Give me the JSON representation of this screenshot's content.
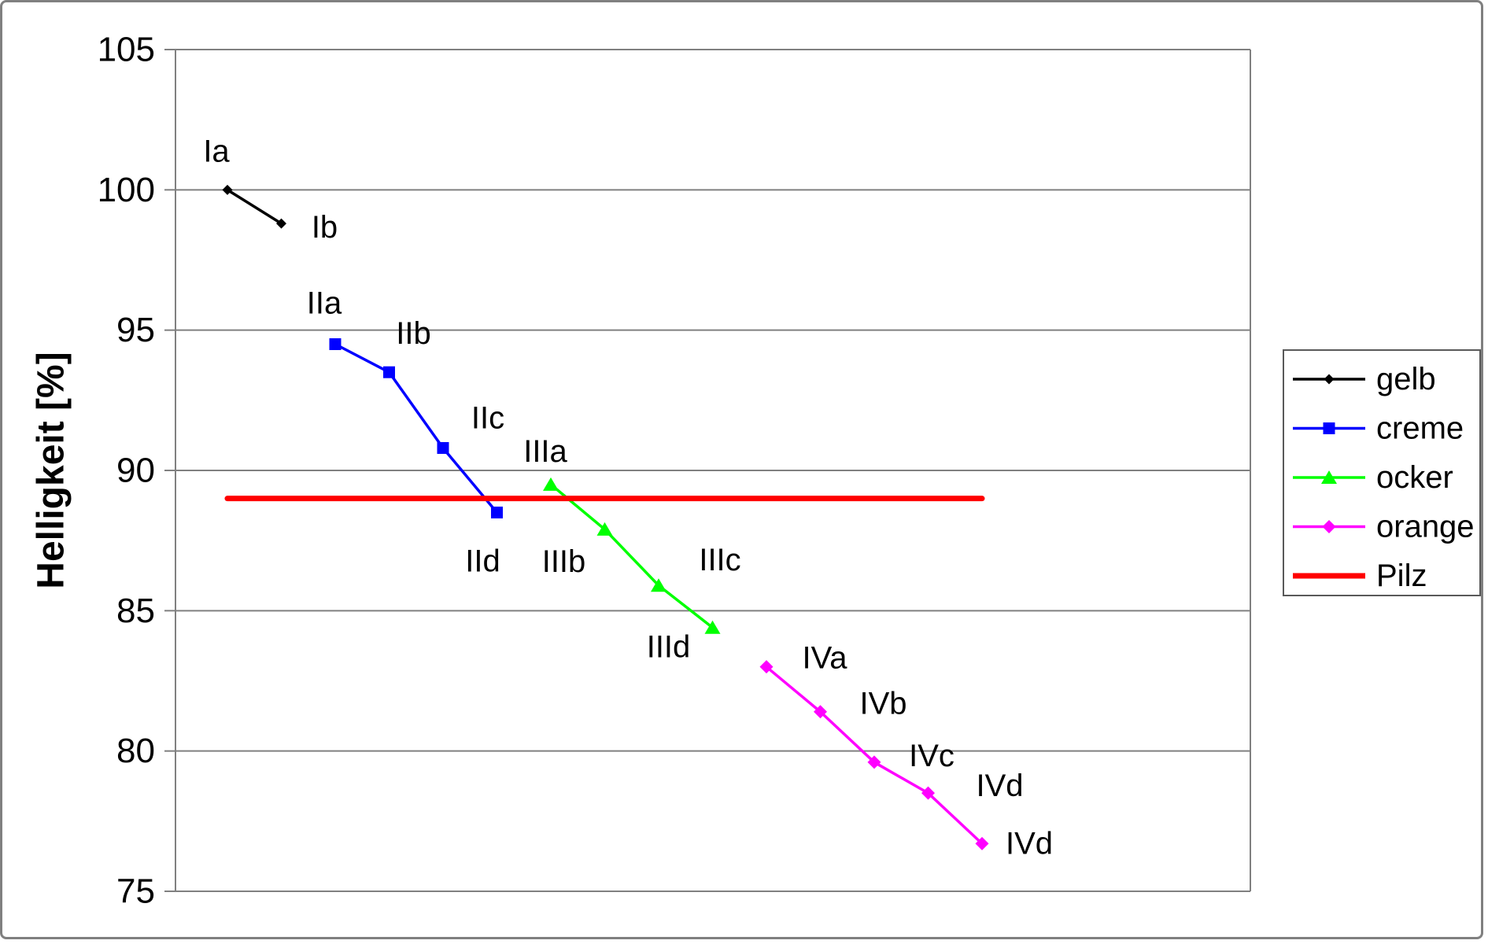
{
  "frame": {
    "background": "#ffffff",
    "border_color": "#808080"
  },
  "chart_data": {
    "type": "line",
    "title": "",
    "xlabel": "",
    "ylabel": "Helligkeit [%]",
    "ylim": [
      75,
      105
    ],
    "yticks": [
      105,
      100,
      95,
      90,
      85,
      80,
      75
    ],
    "ytick_labels": [
      "105",
      "100",
      "95",
      "90",
      "85",
      "80",
      "75"
    ],
    "grid": "horizontal",
    "gridline_color": "#808080",
    "axis_color": "#808080",
    "categories": [
      "Ia",
      "Ib",
      "IIa",
      "IIb",
      "IIc",
      "IId",
      "IIIa",
      "IIIb",
      "IIIc",
      "IIId",
      "IVa",
      "IVb",
      "IVc",
      "IVd",
      "IVd"
    ],
    "series": [
      {
        "name": "gelb",
        "color": "#000000",
        "marker": "diamond",
        "marker_size": 13,
        "line_width": 3.5,
        "points": [
          {
            "category": "Ia",
            "i": 0,
            "value": 100.0,
            "label": "Ia",
            "label_dx": -14,
            "label_dy": -49
          },
          {
            "category": "Ib",
            "i": 1,
            "value": 98.8,
            "label": "Ib",
            "label_dx": 55,
            "label_dy": 5
          }
        ]
      },
      {
        "name": "creme",
        "color": "#0000ff",
        "marker": "square",
        "marker_size": 15,
        "line_width": 3.5,
        "points": [
          {
            "category": "IIa",
            "i": 2,
            "value": 94.5,
            "label": "IIa",
            "label_dx": -14,
            "label_dy": -52
          },
          {
            "category": "IIb",
            "i": 3,
            "value": 93.5,
            "label": "IIb",
            "label_dx": 31,
            "label_dy": -49
          },
          {
            "category": "IIc",
            "i": 4,
            "value": 90.8,
            "label": "IIc",
            "label_dx": 57,
            "label_dy": -38
          },
          {
            "category": "IId",
            "i": 5,
            "value": 88.5,
            "label": "IId",
            "label_dx": -18,
            "label_dy": 62
          }
        ]
      },
      {
        "name": "ocker",
        "color": "#00ff00",
        "marker": "triangle",
        "marker_size": 20,
        "line_width": 3.5,
        "points": [
          {
            "category": "IIIa",
            "i": 6,
            "value": 89.5,
            "label": "IIIa",
            "label_dx": -7,
            "label_dy": -42
          },
          {
            "category": "IIIb",
            "i": 7,
            "value": 87.9,
            "label": "IIIb",
            "label_dx": -52,
            "label_dy": 41
          },
          {
            "category": "IIIc",
            "i": 8,
            "value": 85.9,
            "label": "IIIc",
            "label_dx": 78,
            "label_dy": -32
          },
          {
            "category": "IIId",
            "i": 9,
            "value": 84.4,
            "label": "IIId",
            "label_dx": -56,
            "label_dy": 25
          }
        ]
      },
      {
        "name": "orange",
        "color": "#ff00ff",
        "marker": "diamond",
        "marker_size": 17,
        "line_width": 3.5,
        "points": [
          {
            "category": "IVa",
            "i": 10,
            "value": 83.0,
            "label": "IVa",
            "label_dx": 74,
            "label_dy": -11
          },
          {
            "category": "IVb",
            "i": 11,
            "value": 81.4,
            "label": "IVb",
            "label_dx": 80,
            "label_dy": -10
          },
          {
            "category": "IVc",
            "i": 12,
            "value": 79.6,
            "label": "IVc",
            "label_dx": 73,
            "label_dy": -8
          },
          {
            "category": "IVd",
            "i": 13,
            "value": 78.5,
            "label": "IVd",
            "label_dx": 91,
            "label_dy": -9
          },
          {
            "category": "IVd",
            "i": 14,
            "value": 76.7,
            "label": "IVd",
            "label_dx": 60,
            "label_dy": 0
          }
        ]
      },
      {
        "name": "Pilz",
        "color": "#ff0000",
        "marker": "none",
        "marker_size": 0,
        "line_width": 7,
        "points": [
          {
            "category": "Ia",
            "i": 0,
            "value": 89.0
          },
          {
            "category": "IVd",
            "i": 14,
            "value": 89.0
          }
        ]
      }
    ],
    "legend": {
      "position": "right",
      "border_color": "#595959",
      "background": "#ffffff",
      "entries": [
        "gelb",
        "creme",
        "ocker",
        "orange",
        "Pilz"
      ]
    }
  }
}
